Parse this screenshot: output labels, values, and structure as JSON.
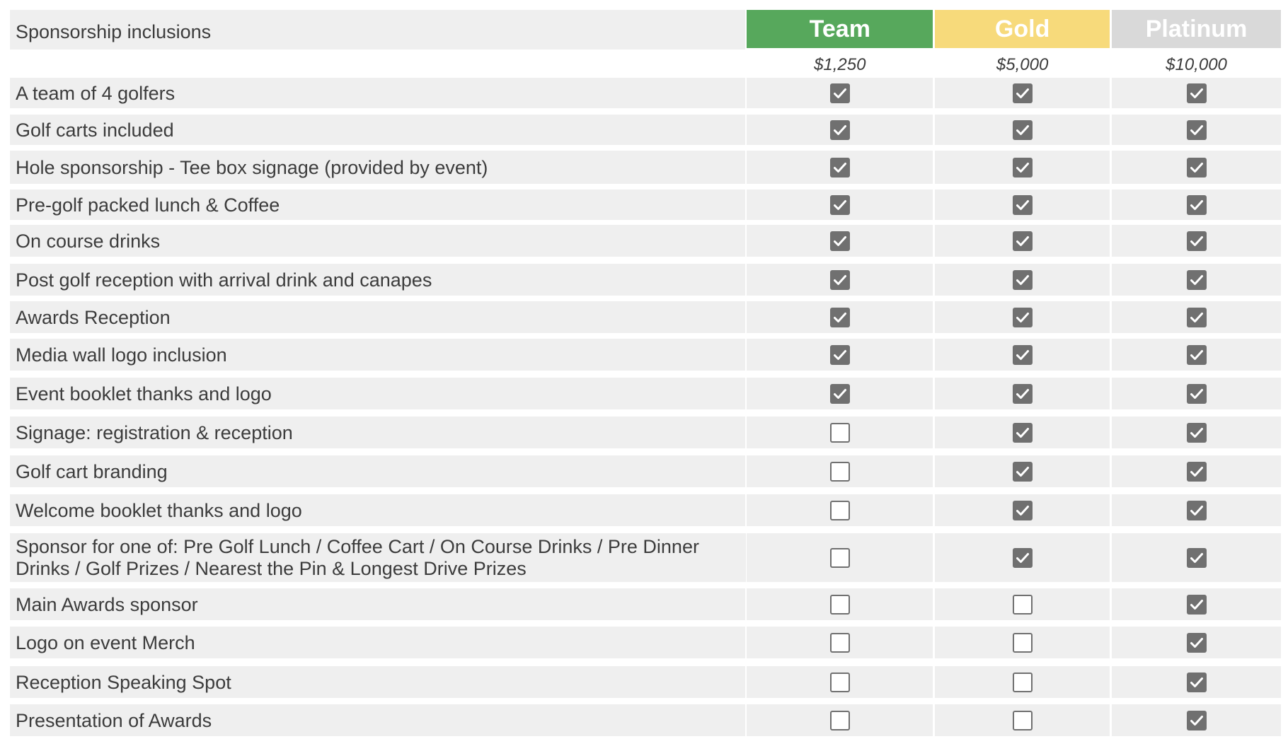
{
  "header": {
    "title": "Sponsorship inclusions",
    "tiers": [
      {
        "name": "Team",
        "price": "$1,250",
        "color": "#57a85c"
      },
      {
        "name": "Gold",
        "price": "$5,000",
        "color": "#f7da7b"
      },
      {
        "name": "Platinum",
        "price": "$10,000",
        "color": "#d9d9d9"
      }
    ]
  },
  "icons": {
    "checked": "checkbox-checked-icon",
    "unchecked": "checkbox-unchecked-icon"
  },
  "rows": [
    {
      "label": "A team of 4 golfers",
      "team": true,
      "gold": true,
      "platinum": true
    },
    {
      "label": "Golf carts included",
      "team": true,
      "gold": true,
      "platinum": true
    },
    {
      "label": "Hole sponsorship - Tee box signage (provided by event)",
      "team": true,
      "gold": true,
      "platinum": true
    },
    {
      "label": "Pre-golf packed lunch & Coffee",
      "team": true,
      "gold": true,
      "platinum": true
    },
    {
      "label": "On course drinks",
      "team": true,
      "gold": true,
      "platinum": true
    },
    {
      "label": "Post golf reception with arrival drink and canapes",
      "team": true,
      "gold": true,
      "platinum": true
    },
    {
      "label": "Awards Reception",
      "team": true,
      "gold": true,
      "platinum": true
    },
    {
      "label": "Media wall logo inclusion",
      "team": true,
      "gold": true,
      "platinum": true
    },
    {
      "label": "Event booklet thanks and logo",
      "team": true,
      "gold": true,
      "platinum": true
    },
    {
      "label": "Signage: registration & reception",
      "team": false,
      "gold": true,
      "platinum": true
    },
    {
      "label": "Golf cart branding",
      "team": false,
      "gold": true,
      "platinum": true
    },
    {
      "label": "Welcome booklet thanks and logo",
      "team": false,
      "gold": true,
      "platinum": true
    },
    {
      "label": "Sponsor for one of: Pre Golf Lunch / Coffee Cart / On Course Drinks / Pre Dinner Drinks / Golf Prizes / Nearest the Pin & Longest Drive Prizes",
      "team": false,
      "gold": true,
      "platinum": true
    },
    {
      "label": "Main Awards sponsor",
      "team": false,
      "gold": false,
      "platinum": true
    },
    {
      "label": "Logo on event Merch",
      "team": false,
      "gold": false,
      "platinum": true
    },
    {
      "label": "Reception Speaking Spot",
      "team": false,
      "gold": false,
      "platinum": true
    },
    {
      "label": "Presentation of Awards",
      "team": false,
      "gold": false,
      "platinum": true
    }
  ]
}
